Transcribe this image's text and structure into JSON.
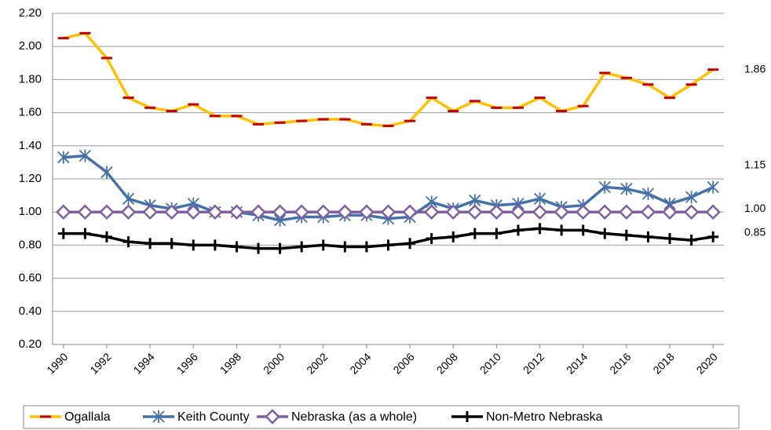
{
  "chart_data": {
    "type": "line",
    "x": [
      1990,
      1991,
      1992,
      1993,
      1994,
      1995,
      1996,
      1997,
      1998,
      1999,
      2000,
      2001,
      2002,
      2003,
      2004,
      2005,
      2006,
      2007,
      2008,
      2009,
      2010,
      2011,
      2012,
      2013,
      2014,
      2015,
      2016,
      2017,
      2018,
      2019,
      2020
    ],
    "xlim": [
      1989.5,
      2020.5
    ],
    "xticks": [
      1990,
      1992,
      1994,
      1996,
      1998,
      2000,
      2002,
      2004,
      2006,
      2008,
      2010,
      2012,
      2014,
      2016,
      2018,
      2020
    ],
    "ylim": [
      0.2,
      2.2
    ],
    "yticks": [
      {
        "value": 0.2,
        "label": "0.20"
      },
      {
        "value": 0.4,
        "label": "0.40"
      },
      {
        "value": 0.6,
        "label": "0.60"
      },
      {
        "value": 0.8,
        "label": "0.80"
      },
      {
        "value": 1.0,
        "label": "1.00"
      },
      {
        "value": 1.2,
        "label": "1.20"
      },
      {
        "value": 1.4,
        "label": "1.40"
      },
      {
        "value": 1.6,
        "label": "1.60"
      },
      {
        "value": 1.8,
        "label": "1.80"
      },
      {
        "value": 2.0,
        "label": "2.00"
      },
      {
        "value": 2.2,
        "label": "2.20"
      }
    ],
    "grid": true,
    "legend": "bottom",
    "series": [
      {
        "name": "Ogallala",
        "color": "#ffc000",
        "marker": "dash",
        "marker_color": "#c00000",
        "end_label": "1.86",
        "values": [
          2.05,
          2.08,
          1.93,
          1.69,
          1.63,
          1.61,
          1.65,
          1.58,
          1.58,
          1.53,
          1.54,
          1.55,
          1.56,
          1.56,
          1.53,
          1.52,
          1.55,
          1.69,
          1.61,
          1.67,
          1.63,
          1.63,
          1.69,
          1.61,
          1.64,
          1.84,
          1.81,
          1.77,
          1.69,
          1.77,
          1.86
        ]
      },
      {
        "name": "Keith County",
        "color": "#4472a8",
        "marker": "asterisk",
        "marker_color": "#4472a8",
        "end_label": "1.15",
        "values": [
          1.33,
          1.34,
          1.24,
          1.08,
          1.04,
          1.02,
          1.05,
          1.0,
          1.0,
          0.98,
          0.95,
          0.97,
          0.97,
          0.98,
          0.98,
          0.96,
          0.97,
          1.06,
          1.02,
          1.07,
          1.04,
          1.05,
          1.08,
          1.03,
          1.04,
          1.15,
          1.14,
          1.11,
          1.05,
          1.09,
          1.15
        ]
      },
      {
        "name": "Nebraska (as a whole)",
        "color": "#7f5f9f",
        "marker": "diamond",
        "marker_color": "#7f5f9f",
        "end_label": "1.00",
        "values": [
          1.0,
          1.0,
          1.0,
          1.0,
          1.0,
          1.0,
          1.0,
          1.0,
          1.0,
          1.0,
          1.0,
          1.0,
          1.0,
          1.0,
          1.0,
          1.0,
          1.0,
          1.0,
          1.0,
          1.0,
          1.0,
          1.0,
          1.0,
          1.0,
          1.0,
          1.0,
          1.0,
          1.0,
          1.0,
          1.0,
          1.0
        ]
      },
      {
        "name": "Non-Metro Nebraska",
        "color": "#000000",
        "marker": "plus",
        "marker_color": "#000000",
        "end_label": "0.85",
        "values": [
          0.87,
          0.87,
          0.85,
          0.82,
          0.81,
          0.81,
          0.8,
          0.8,
          0.79,
          0.78,
          0.78,
          0.79,
          0.8,
          0.79,
          0.79,
          0.8,
          0.81,
          0.84,
          0.85,
          0.87,
          0.87,
          0.89,
          0.9,
          0.89,
          0.89,
          0.87,
          0.86,
          0.85,
          0.84,
          0.83,
          0.85
        ]
      }
    ]
  }
}
